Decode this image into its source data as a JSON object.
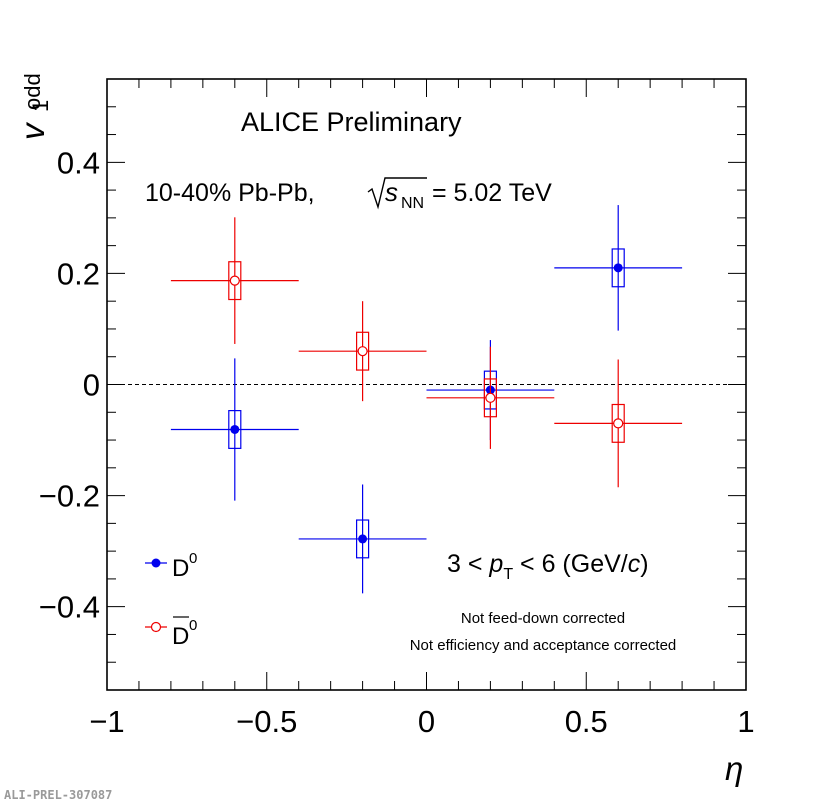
{
  "chart_data": {
    "type": "scatter",
    "title": "ALICE Preliminary",
    "system_label": {
      "prefix": "10-40% Pb-Pb,",
      "sqrt_var": "s",
      "sqrt_sub": "NN",
      "energy": "= 5.02 TeV"
    },
    "xlabel": "η",
    "ylabel": {
      "main": "v",
      "sup": "odd",
      "sub": "1"
    },
    "xlim": [
      -1,
      1
    ],
    "ylim": [
      -0.55,
      0.55
    ],
    "x_ticks": [
      {
        "value": -1,
        "label": "−1"
      },
      {
        "value": -0.5,
        "label": "−0.5"
      },
      {
        "value": 0,
        "label": "0"
      },
      {
        "value": 0.5,
        "label": "0.5"
      },
      {
        "value": 1,
        "label": "1"
      }
    ],
    "y_ticks": [
      {
        "value": -0.4,
        "label": "−0.4"
      },
      {
        "value": -0.2,
        "label": "−0.2"
      },
      {
        "value": 0,
        "label": "0"
      },
      {
        "value": 0.2,
        "label": "0.2"
      },
      {
        "value": 0.4,
        "label": "0.4"
      }
    ],
    "reference_line": 0,
    "series": [
      {
        "name": "D0",
        "legend_main": "D",
        "legend_sup": "0",
        "bar_over": false,
        "color": "#0000ee",
        "marker": "filled-circle",
        "points": [
          {
            "x": -0.6,
            "y": -0.081,
            "stat_err": 0.128,
            "syst_err": 0.034,
            "x_err": 0.2
          },
          {
            "x": -0.2,
            "y": -0.278,
            "stat_err": 0.098,
            "syst_err": 0.034,
            "x_err": 0.2
          },
          {
            "x": 0.2,
            "y": -0.01,
            "stat_err": 0.09,
            "syst_err": 0.034,
            "x_err": 0.2
          },
          {
            "x": 0.6,
            "y": 0.21,
            "stat_err": 0.113,
            "syst_err": 0.034,
            "x_err": 0.2
          }
        ]
      },
      {
        "name": "D0bar",
        "legend_main": "D",
        "legend_sup": "0",
        "bar_over": true,
        "color": "#ee0000",
        "marker": "open-circle",
        "points": [
          {
            "x": -0.6,
            "y": 0.187,
            "stat_err": 0.114,
            "syst_err": 0.034,
            "x_err": 0.2
          },
          {
            "x": -0.2,
            "y": 0.06,
            "stat_err": 0.09,
            "syst_err": 0.034,
            "x_err": 0.2
          },
          {
            "x": 0.2,
            "y": -0.024,
            "stat_err": 0.092,
            "syst_err": 0.034,
            "x_err": 0.2
          },
          {
            "x": 0.6,
            "y": -0.07,
            "stat_err": 0.115,
            "syst_err": 0.034,
            "x_err": 0.2
          }
        ]
      }
    ],
    "annotations": {
      "pt_range": {
        "pre": "3 < ",
        "var": "p",
        "sub": "T",
        "post": " < 6 (GeV/",
        "unit_var": "c",
        "close": ")"
      },
      "note1": "Not feed-down corrected",
      "note2": "Not efficiency and acceptance corrected"
    }
  },
  "footer_code": "ALI-PREL-307087"
}
